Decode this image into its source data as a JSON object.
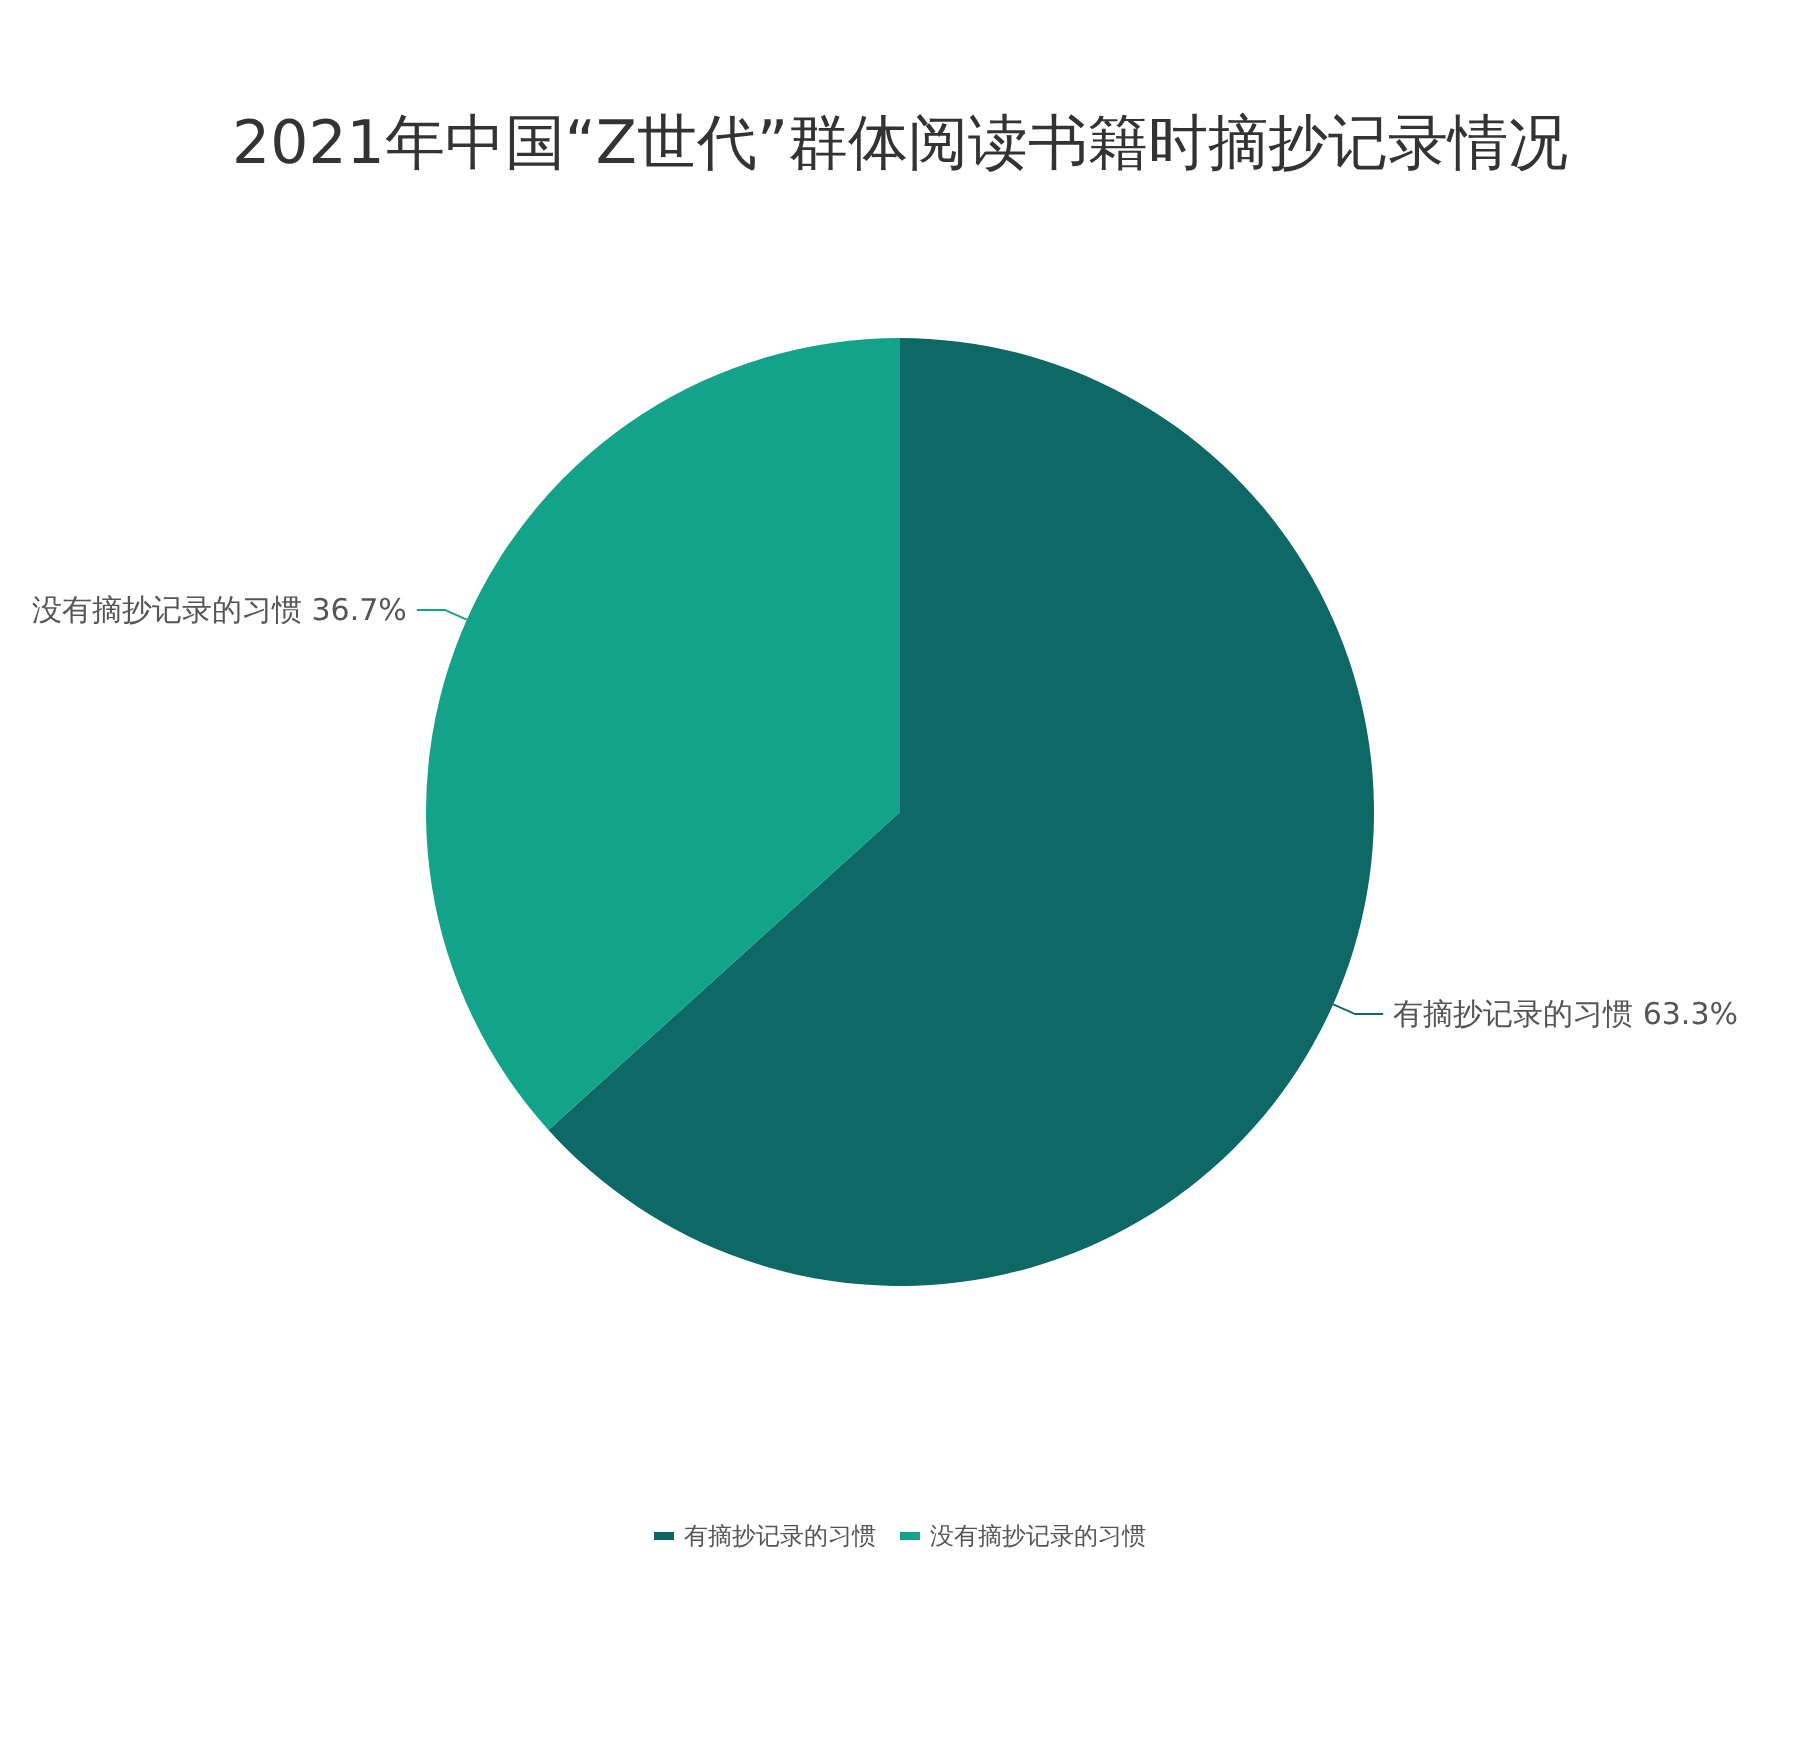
{
  "chart_data": {
    "type": "pie",
    "title": "2021年中国“Z世代”群体阅读书籍时摘抄记录情况",
    "categories": [
      "有摘抄记录的习惯",
      "没有摘抄记录的习惯"
    ],
    "values": [
      63.3,
      36.7
    ],
    "value_labels": [
      "63.3%",
      "36.7%"
    ],
    "colors": [
      "#0e6966",
      "#13a38b"
    ],
    "legend": "bottom"
  }
}
